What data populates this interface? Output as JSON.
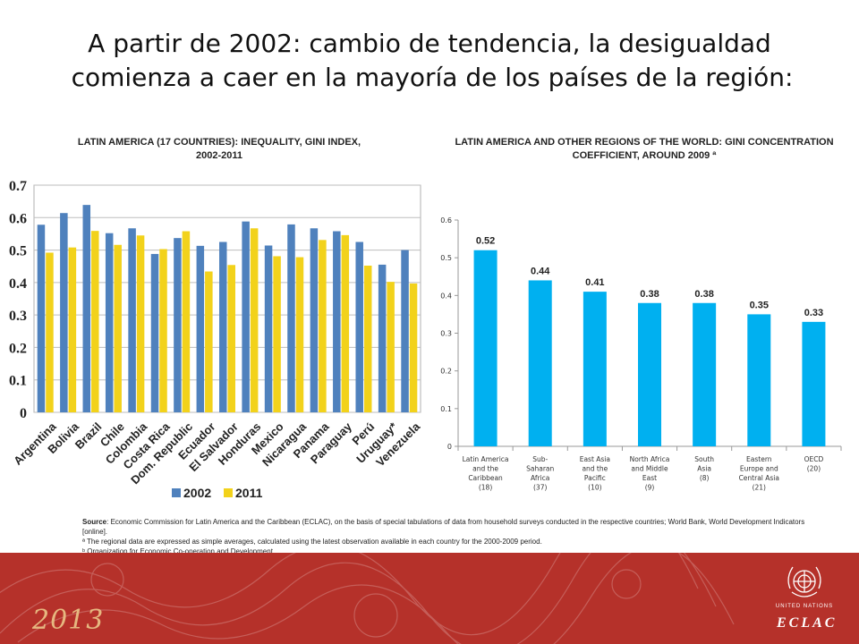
{
  "title": {
    "line1": "A partir de 2002: cambio de tendencia, la desigualdad",
    "line2": "comienza a caer en la mayoría de los países de la región:"
  },
  "chart_data": [
    {
      "type": "bar",
      "title": "LATIN AMERICA (17 COUNTRIES): INEQUALITY, GINI INDEX, 2002-2011",
      "categories": [
        "Argentina",
        "Bolivia",
        "Brazil",
        "Chile",
        "Colombia",
        "Costa Rica",
        "Dom. Republic",
        "Ecuador",
        "El Salvador",
        "Honduras",
        "Mexico",
        "Nicaragua",
        "Panama",
        "Paraguay",
        "Perú",
        "Uruguay*",
        "Venezuela"
      ],
      "series": [
        {
          "name": "2002",
          "color": "#4f81bd",
          "values": [
            0.578,
            0.614,
            0.639,
            0.552,
            0.567,
            0.488,
            0.537,
            0.513,
            0.525,
            0.588,
            0.514,
            0.579,
            0.567,
            0.558,
            0.525,
            0.455,
            0.5
          ]
        },
        {
          "name": "2011",
          "color": "#f2d21b",
          "values": [
            0.492,
            0.508,
            0.559,
            0.516,
            0.545,
            0.503,
            0.558,
            0.434,
            0.454,
            0.567,
            0.481,
            0.478,
            0.531,
            0.546,
            0.452,
            0.402,
            0.397
          ]
        }
      ],
      "yticks": [
        "0",
        "0.1",
        "0.2",
        "0.3",
        "0.4",
        "0.5",
        "0.6",
        "0.7"
      ],
      "ylim": [
        0,
        0.7
      ],
      "legend": "bottom",
      "grid": true
    },
    {
      "type": "bar",
      "title": "LATIN AMERICA AND OTHER REGIONS OF THE WORLD: GINI CONCENTRATION COEFFICIENT, AROUND 2009 ª",
      "categories": [
        [
          "Latin America",
          "and the",
          "Caribbean",
          "(18)"
        ],
        [
          "Sub-",
          "Saharan",
          "Africa",
          "(37)"
        ],
        [
          "East Asia",
          "and the",
          "Pacific",
          "(10)"
        ],
        [
          "North Africa",
          "and Middle",
          "East",
          "(9)"
        ],
        [
          "South",
          "Asia",
          "(8)"
        ],
        [
          "Eastern",
          "Europe and",
          "Central Asia",
          "(21)"
        ],
        [
          "OECD",
          "(20)"
        ]
      ],
      "values": [
        0.52,
        0.44,
        0.41,
        0.38,
        0.38,
        0.35,
        0.33
      ],
      "data_labels": [
        "0.52",
        "0.44",
        "0.41",
        "0.38",
        "0.38",
        "0.35",
        "0.33"
      ],
      "yticks": [
        "0",
        "0.1",
        "0.2",
        "0.3",
        "0.4",
        "0.5",
        "0.6"
      ],
      "ylim": [
        0,
        0.6
      ],
      "color": "#00b0f0",
      "grid": false
    }
  ],
  "notes": {
    "source_label": "Source",
    "source": ": Economic Commission for Latin America and the Caribbean (ECLAC), on the basis of special tabulations of data from household surveys conducted in the respective countries; World Bank, World Development Indicators [online].",
    "note_a": "ª The regional data are expressed as simple averages, calculated using the latest observation available in each country for the 2000-2009 period.",
    "note_b": "ᵇ Organization for Economic Co-operation and Development"
  },
  "footer": {
    "year": "2013",
    "un_text": "UNITED NATIONS",
    "eclac": "ECLAC"
  }
}
